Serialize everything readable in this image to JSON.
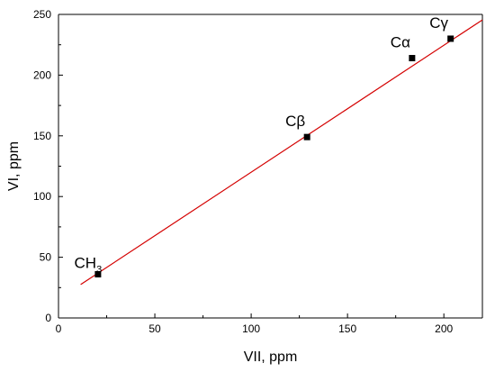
{
  "chart_data": {
    "type": "scatter",
    "xlabel": "VII, ppm",
    "ylabel": "VI, ppm",
    "xlim": [
      0,
      220
    ],
    "ylim": [
      0,
      250
    ],
    "x_ticks": [
      "0",
      "50",
      "100",
      "150",
      "200"
    ],
    "y_ticks": [
      "0",
      "50",
      "100",
      "150",
      "200",
      "250"
    ],
    "grid": false,
    "points": [
      {
        "label": "CH",
        "label_sub": "3",
        "x": 20.5,
        "y": 36
      },
      {
        "label": "Cβ",
        "x": 129,
        "y": 149
      },
      {
        "label": "Cα",
        "x": 183.5,
        "y": 214
      },
      {
        "label": "Cγ",
        "x": 203.5,
        "y": 230
      }
    ],
    "fit_line": {
      "x": [
        11.5,
        220
      ],
      "y": [
        27.5,
        245.5
      ]
    },
    "colors": {
      "points": "#000000",
      "fit_line": "#d40000",
      "axes": "#000000"
    }
  }
}
